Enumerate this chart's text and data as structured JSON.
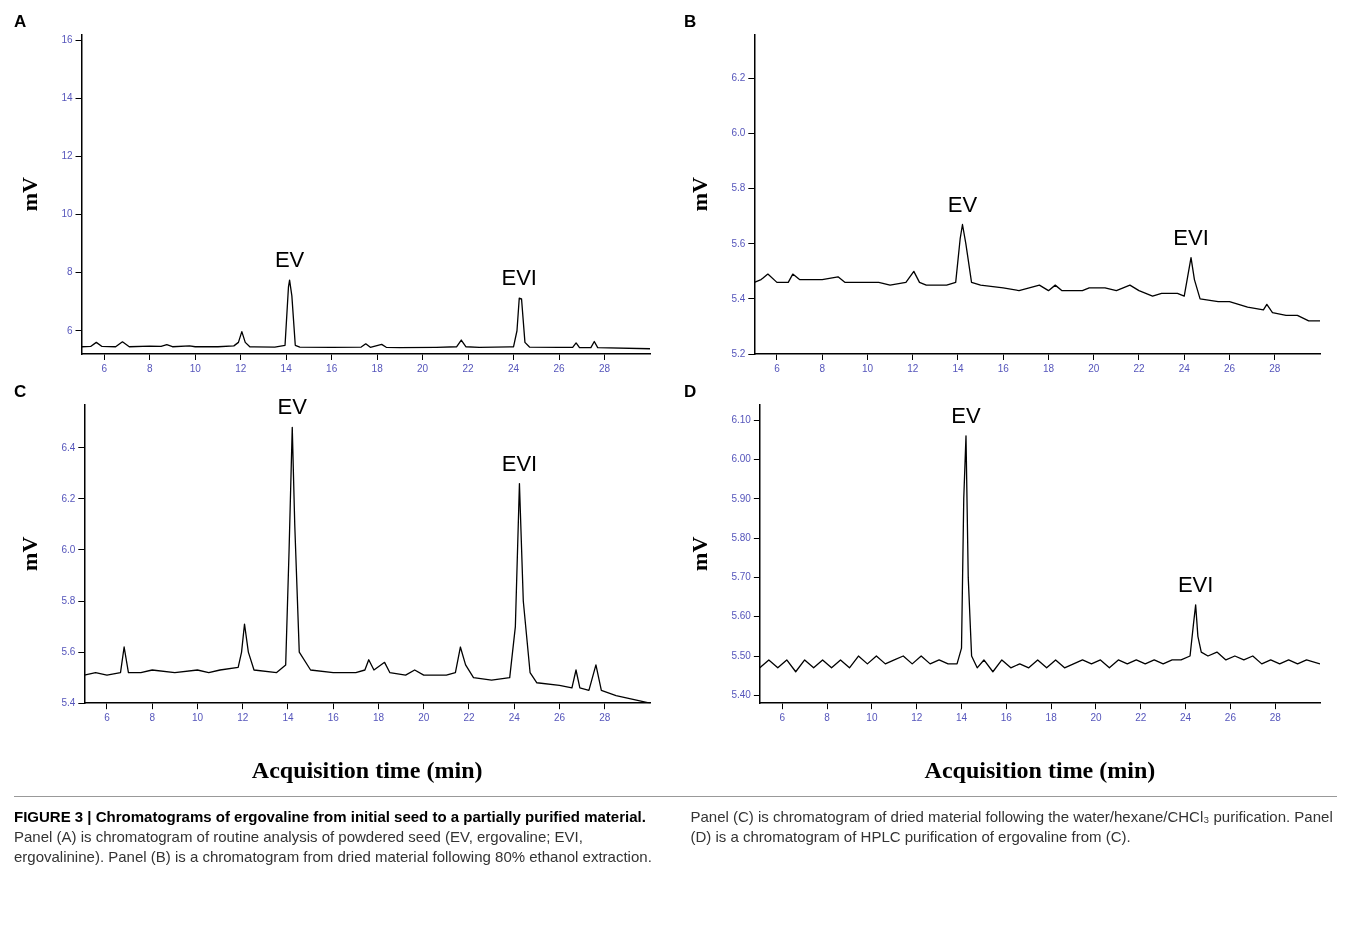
{
  "chart_data": [
    {
      "type": "line",
      "title": "A",
      "ylabel": "mV",
      "xlim": [
        5,
        30
      ],
      "xticks": [
        6,
        8,
        10,
        12,
        14,
        16,
        18,
        20,
        22,
        24,
        26,
        28
      ],
      "ylim": [
        5.2,
        16.2
      ],
      "yticks": [
        6,
        8,
        10,
        12,
        14,
        16
      ],
      "grid": false,
      "legend": false,
      "marker": "none",
      "x": [
        5,
        5.4,
        5.65,
        5.9,
        6.5,
        6.8,
        7.1,
        8,
        8.5,
        8.75,
        9,
        9.75,
        10,
        11,
        11.7,
        11.9,
        12.05,
        12.2,
        12.4,
        13.5,
        13.95,
        14.1,
        14.15,
        14.25,
        14.4,
        14.6,
        16,
        17.3,
        17.5,
        17.7,
        18.2,
        18.4,
        19,
        20.6,
        21.5,
        21.7,
        21.9,
        22.5,
        24,
        24.15,
        24.25,
        24.35,
        24.5,
        24.7,
        26,
        26.6,
        26.75,
        26.9,
        27.4,
        27.55,
        27.7,
        30
      ],
      "series": [
        {
          "color": "#000000",
          "values": [
            5.45,
            5.46,
            5.6,
            5.46,
            5.45,
            5.62,
            5.45,
            5.47,
            5.46,
            5.52,
            5.45,
            5.48,
            5.45,
            5.45,
            5.48,
            5.6,
            5.97,
            5.6,
            5.45,
            5.44,
            5.5,
            7.5,
            7.74,
            7.2,
            5.5,
            5.44,
            5.43,
            5.44,
            5.55,
            5.43,
            5.53,
            5.43,
            5.42,
            5.43,
            5.45,
            5.68,
            5.45,
            5.43,
            5.45,
            6.0,
            7.12,
            7.1,
            5.6,
            5.44,
            5.43,
            5.43,
            5.58,
            5.42,
            5.42,
            5.63,
            5.42,
            5.38
          ]
        }
      ],
      "annotations": [
        {
          "text": "EV",
          "x": 14.15,
          "y": 7.74
        },
        {
          "text": "EVI",
          "x": 24.25,
          "y": 7.12
        }
      ]
    },
    {
      "type": "line",
      "title": "B",
      "ylabel": "mV",
      "xlim": [
        5,
        30
      ],
      "xticks": [
        6,
        8,
        10,
        12,
        14,
        16,
        18,
        20,
        22,
        24,
        26,
        28
      ],
      "ylim": [
        5.2,
        6.36
      ],
      "yticks": [
        {
          "value": 5.2,
          "label": "5.2"
        },
        {
          "value": 5.4,
          "label": "5.4"
        },
        {
          "value": 5.6,
          "label": "5.6"
        },
        {
          "value": 5.8,
          "label": "5.8"
        },
        {
          "value": 6,
          "label": "6.0"
        },
        {
          "value": 6.2,
          "label": "6.2"
        }
      ],
      "grid": false,
      "legend": false,
      "marker": "none",
      "x": [
        5,
        5.3,
        5.6,
        6,
        6.5,
        6.7,
        7,
        8,
        8.7,
        9,
        10,
        10.5,
        11,
        11.7,
        12.05,
        12.3,
        12.6,
        13.5,
        13.9,
        14.1,
        14.2,
        14.35,
        14.6,
        15,
        16,
        16.7,
        17.6,
        18,
        18.3,
        18.6,
        19.5,
        19.8,
        20.5,
        21,
        21.6,
        22,
        22.6,
        23,
        23.7,
        24,
        24.15,
        24.3,
        24.45,
        24.7,
        25.5,
        26,
        26.8,
        27.5,
        27.65,
        27.9,
        28.5,
        29,
        29.5,
        30
      ],
      "series": [
        {
          "color": "#000000",
          "values": [
            5.46,
            5.47,
            5.49,
            5.46,
            5.46,
            5.49,
            5.47,
            5.47,
            5.48,
            5.46,
            5.46,
            5.46,
            5.45,
            5.46,
            5.5,
            5.46,
            5.45,
            5.45,
            5.46,
            5.62,
            5.67,
            5.6,
            5.46,
            5.45,
            5.44,
            5.43,
            5.45,
            5.43,
            5.45,
            5.43,
            5.43,
            5.44,
            5.44,
            5.43,
            5.45,
            5.43,
            5.41,
            5.42,
            5.42,
            5.41,
            5.48,
            5.55,
            5.47,
            5.4,
            5.39,
            5.39,
            5.37,
            5.36,
            5.38,
            5.35,
            5.34,
            5.34,
            5.32,
            5.32
          ]
        }
      ],
      "annotations": [
        {
          "text": "EV",
          "x": 14.2,
          "y": 5.67
        },
        {
          "text": "EVI",
          "x": 24.3,
          "y": 5.55
        }
      ]
    },
    {
      "type": "line",
      "title": "C",
      "ylabel": "mV",
      "xlabel": "Acquisition time (min)",
      "xlim": [
        5,
        30
      ],
      "xticks": [
        6,
        8,
        10,
        12,
        14,
        16,
        18,
        20,
        22,
        24,
        26,
        28
      ],
      "ylim": [
        5.4,
        6.57
      ],
      "yticks": [
        {
          "value": 5.4,
          "label": "5.4"
        },
        {
          "value": 5.6,
          "label": "5.6"
        },
        {
          "value": 5.8,
          "label": "5.8"
        },
        {
          "value": 6,
          "label": "6.0"
        },
        {
          "value": 6.2,
          "label": "6.2"
        },
        {
          "value": 6.4,
          "label": "6.4"
        }
      ],
      "grid": false,
      "legend": false,
      "marker": "none",
      "x": [
        5,
        5.5,
        6,
        6.6,
        6.76,
        6.95,
        7.5,
        8,
        9,
        10,
        10.5,
        11,
        11.8,
        11.95,
        12.08,
        12.25,
        12.5,
        13.5,
        13.9,
        14.05,
        14.19,
        14.3,
        14.5,
        15,
        16,
        17,
        17.4,
        17.57,
        17.8,
        18.27,
        18.5,
        19.2,
        19.6,
        20,
        21,
        21.4,
        21.62,
        21.85,
        22.2,
        23,
        23.8,
        24.05,
        24.23,
        24.4,
        24.7,
        25,
        26,
        26.55,
        26.73,
        26.9,
        27.3,
        27.61,
        27.85,
        28.5,
        29,
        29.5,
        30
      ],
      "series": [
        {
          "color": "#000000",
          "values": [
            5.51,
            5.52,
            5.51,
            5.52,
            5.62,
            5.52,
            5.52,
            5.53,
            5.52,
            5.53,
            5.52,
            5.53,
            5.54,
            5.6,
            5.71,
            5.6,
            5.53,
            5.52,
            5.55,
            6.0,
            6.48,
            6.1,
            5.6,
            5.53,
            5.52,
            5.52,
            5.53,
            5.57,
            5.53,
            5.56,
            5.52,
            5.51,
            5.53,
            5.51,
            5.51,
            5.52,
            5.62,
            5.55,
            5.5,
            5.49,
            5.5,
            5.7,
            6.26,
            5.8,
            5.52,
            5.48,
            5.47,
            5.46,
            5.53,
            5.46,
            5.45,
            5.55,
            5.45,
            5.43,
            5.42,
            5.41,
            5.4
          ]
        }
      ],
      "annotations": [
        {
          "text": "EV",
          "x": 14.19,
          "y": 6.48
        },
        {
          "text": "EVI",
          "x": 24.23,
          "y": 6.26
        }
      ]
    },
    {
      "type": "line",
      "title": "D",
      "ylabel": "mV",
      "xlabel": "Acquisition time (min)",
      "xlim": [
        5,
        30
      ],
      "xticks": [
        6,
        8,
        10,
        12,
        14,
        16,
        18,
        20,
        22,
        24,
        26,
        28
      ],
      "ylim": [
        5.38,
        6.14
      ],
      "yticks": [
        {
          "value": 5.4,
          "label": "5.40"
        },
        {
          "value": 5.5,
          "label": "5.50"
        },
        {
          "value": 5.6,
          "label": "5.60"
        },
        {
          "value": 5.7,
          "label": "5.70"
        },
        {
          "value": 5.8,
          "label": "5.80"
        },
        {
          "value": 5.9,
          "label": "5.90"
        },
        {
          "value": 6,
          "label": "6.00"
        },
        {
          "value": 6.1,
          "label": "6.10"
        }
      ],
      "grid": false,
      "legend": false,
      "marker": "none",
      "x": [
        5,
        5.4,
        5.8,
        6.2,
        6.6,
        7,
        7.4,
        7.8,
        8.2,
        8.6,
        9,
        9.4,
        9.8,
        10.2,
        10.6,
        11,
        11.4,
        11.8,
        12.2,
        12.6,
        13,
        13.4,
        13.8,
        14,
        14.1,
        14.2,
        14.3,
        14.45,
        14.7,
        15,
        15.4,
        15.8,
        16.2,
        16.6,
        17,
        17.4,
        17.8,
        18.2,
        18.6,
        19,
        19.4,
        19.8,
        20.2,
        20.6,
        21,
        21.4,
        21.8,
        22.2,
        22.6,
        23,
        23.4,
        23.8,
        24.2,
        24.35,
        24.45,
        24.55,
        24.7,
        25,
        25.4,
        25.8,
        26.2,
        26.6,
        27,
        27.4,
        27.8,
        28.2,
        28.6,
        29,
        29.4,
        30
      ],
      "series": [
        {
          "color": "#000000",
          "values": [
            5.47,
            5.49,
            5.47,
            5.49,
            5.46,
            5.49,
            5.47,
            5.49,
            5.47,
            5.49,
            5.47,
            5.5,
            5.48,
            5.5,
            5.48,
            5.49,
            5.5,
            5.48,
            5.5,
            5.48,
            5.49,
            5.48,
            5.48,
            5.52,
            5.9,
            6.06,
            5.7,
            5.5,
            5.47,
            5.49,
            5.46,
            5.49,
            5.47,
            5.48,
            5.47,
            5.49,
            5.47,
            5.49,
            5.47,
            5.48,
            5.49,
            5.48,
            5.49,
            5.47,
            5.49,
            5.48,
            5.49,
            5.48,
            5.49,
            5.48,
            5.49,
            5.49,
            5.5,
            5.58,
            5.63,
            5.55,
            5.51,
            5.5,
            5.51,
            5.49,
            5.5,
            5.49,
            5.5,
            5.48,
            5.49,
            5.48,
            5.49,
            5.48,
            5.49,
            5.48
          ]
        }
      ],
      "annotations": [
        {
          "text": "EV",
          "x": 14.2,
          "y": 6.06
        },
        {
          "text": "EVI",
          "x": 24.45,
          "y": 5.63
        },
        "FIGURE 3 | Chromatograms of ergovaline from initial seed to a partially purified material.",
        "Panel (A) is chromatogram of routine analysis of powdered seed (EV, ergovaline; EVI, ergovalinine). Panel (B) is a chromatogram from dried material following 80% ethanol extraction. Panel (C) is chromatogram of dried material following the water/hexane/CHCl₃ purification. Panel (D) is a chromatogram of HPLC purification of ergovaline from (C)."
      ]
    }
  ]
}
